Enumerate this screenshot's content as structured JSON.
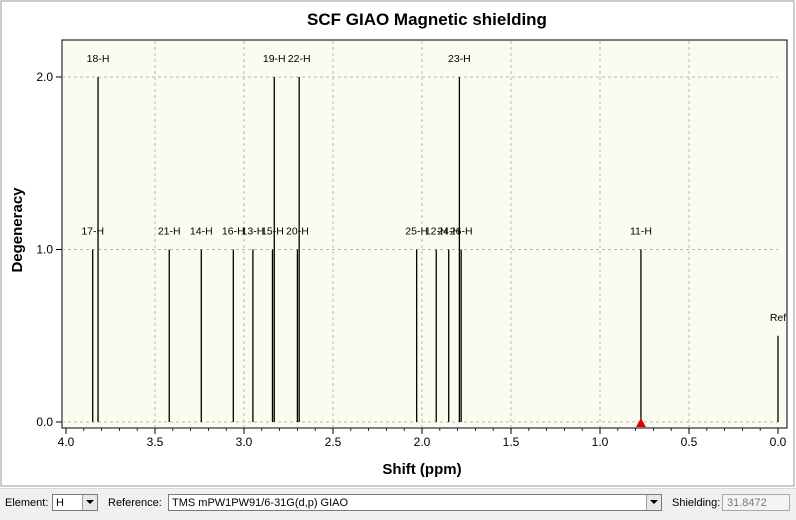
{
  "chart_data": {
    "type": "bar",
    "title": "SCF GIAO Magnetic shielding",
    "xlabel": "Shift (ppm)",
    "ylabel": "Degeneracy",
    "xlim": [
      4.0,
      0.0
    ],
    "ylim": [
      0.0,
      2.0
    ],
    "x_reversed": true,
    "xticks": [
      "4.0",
      "3.5",
      "3.0",
      "2.5",
      "2.0",
      "1.5",
      "1.0",
      "0.5",
      "0.0"
    ],
    "yticks": [
      "0.0",
      "1.0",
      "2.0"
    ],
    "grid": true,
    "peaks": [
      {
        "label": "17-H",
        "x": 3.85,
        "y": 1.0
      },
      {
        "label": "18-H",
        "x": 3.82,
        "y": 2.0
      },
      {
        "label": "21-H",
        "x": 3.42,
        "y": 1.0
      },
      {
        "label": "14-H",
        "x": 3.24,
        "y": 1.0
      },
      {
        "label": "16-H",
        "x": 3.06,
        "y": 1.0
      },
      {
        "label": "13-H",
        "x": 2.95,
        "y": 1.0
      },
      {
        "label": "15-H",
        "x": 2.84,
        "y": 1.0
      },
      {
        "label": "19-H",
        "x": 2.83,
        "y": 2.0
      },
      {
        "label": "20-H",
        "x": 2.7,
        "y": 1.0
      },
      {
        "label": "22-H",
        "x": 2.69,
        "y": 2.0
      },
      {
        "label": "25-H",
        "x": 2.03,
        "y": 1.0
      },
      {
        "label": "12-H",
        "x": 1.92,
        "y": 1.0
      },
      {
        "label": "24-H",
        "x": 1.85,
        "y": 1.0
      },
      {
        "label": "26-H",
        "x": 1.78,
        "y": 1.0
      },
      {
        "label": "23-H",
        "x": 1.79,
        "y": 2.0
      },
      {
        "label": "11-H",
        "x": 0.77,
        "y": 1.0
      },
      {
        "label": "Ref",
        "x": 0.0,
        "y": 0.5
      }
    ],
    "marker": {
      "x": 0.77,
      "color": "#e00000"
    },
    "colors": {
      "plot_bg": "#fbfbef",
      "bar": "#000000",
      "grid": "#b8b8b8"
    }
  },
  "controls": {
    "element_label": "Element:",
    "element_value": "H",
    "reference_label": "Reference:",
    "reference_value": "TMS mPW1PW91/6-31G(d,p) GIAO",
    "shielding_label": "Shielding:",
    "shielding_value": "31.8472"
  }
}
